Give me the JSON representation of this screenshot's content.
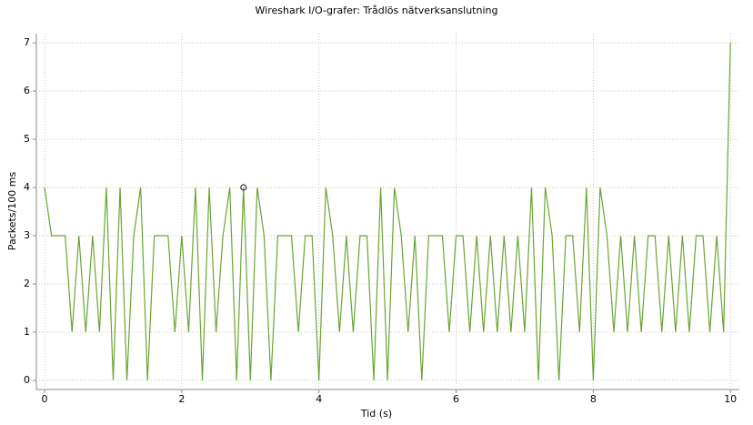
{
  "chart_data": {
    "type": "line",
    "title": "Wireshark I/O-grafer: Trådlös nätverksanslutning",
    "x_label": "Tid (s)",
    "y_label": "Packets/100 ms",
    "x": [
      0,
      0.1,
      0.2,
      0.3,
      0.4,
      0.5,
      0.6,
      0.7,
      0.8,
      0.9,
      1,
      1.1,
      1.2,
      1.3,
      1.4,
      1.5,
      1.6,
      1.7,
      1.8,
      1.9,
      2,
      2.1,
      2.2,
      2.3,
      2.4,
      2.5,
      2.6,
      2.7,
      2.8,
      2.9,
      3,
      3.1,
      3.2,
      3.3,
      3.4,
      3.5,
      3.6,
      3.7,
      3.8,
      3.9,
      4,
      4.1,
      4.2,
      4.3,
      4.4,
      4.5,
      4.6,
      4.7,
      4.8,
      4.9,
      5,
      5.1,
      5.2,
      5.3,
      5.4,
      5.5,
      5.6,
      5.7,
      5.8,
      5.9,
      6,
      6.1,
      6.2,
      6.3,
      6.4,
      6.5,
      6.6,
      6.7,
      6.8,
      6.9,
      7,
      7.1,
      7.2,
      7.3,
      7.4,
      7.5,
      7.6,
      7.7,
      7.8,
      7.9,
      8,
      8.1,
      8.2,
      8.3,
      8.4,
      8.5,
      8.6,
      8.7,
      8.8,
      8.9,
      9,
      9.1,
      9.2,
      9.3,
      9.4,
      9.5,
      9.6,
      9.7,
      9.8,
      9.9,
      10
    ],
    "values": [
      4,
      3,
      3,
      3,
      1,
      3,
      1,
      3,
      1,
      4,
      0,
      4,
      0,
      3,
      4,
      0,
      3,
      3,
      3,
      1,
      3,
      1,
      4,
      0,
      4,
      1,
      3,
      4,
      0,
      4,
      0,
      4,
      3,
      0,
      3,
      3,
      3,
      1,
      3,
      3,
      0,
      4,
      3,
      1,
      3,
      1,
      3,
      3,
      0,
      4,
      0,
      4,
      3,
      1,
      3,
      0,
      3,
      3,
      3,
      1,
      3,
      3,
      1,
      3,
      1,
      3,
      1,
      3,
      1,
      3,
      1,
      4,
      0,
      4,
      3,
      0,
      3,
      3,
      1,
      4,
      0,
      4,
      3,
      1,
      3,
      1,
      3,
      1,
      3,
      3,
      1,
      3,
      1,
      3,
      1,
      3,
      3,
      1,
      3,
      1,
      7
    ],
    "color": "#6aa532",
    "xlim": [
      -0.12,
      10.13
    ],
    "ylim": [
      -0.19,
      7.19
    ],
    "xticks": [
      0,
      2,
      4,
      6,
      8,
      10
    ],
    "yticks": [
      0,
      1,
      2,
      3,
      4,
      5,
      6,
      7
    ],
    "grid": true
  }
}
